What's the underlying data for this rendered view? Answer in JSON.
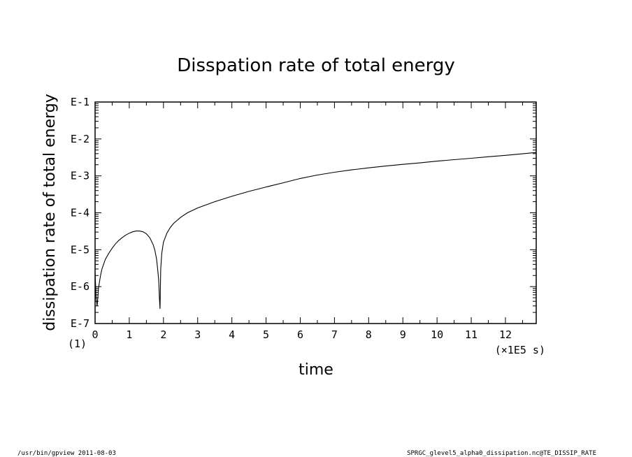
{
  "chart_data": {
    "type": "line",
    "title": "Disspation rate of total energy",
    "xlabel": "time",
    "ylabel": "dissipation rate of total energy",
    "x_unit_label": "(×1E5 s)",
    "y_unit_label": "(1)",
    "xlim": [
      0,
      12.9
    ],
    "ylim": [
      1e-07,
      0.1
    ],
    "yscale": "log",
    "grid": false,
    "x_ticks": [
      0,
      1,
      2,
      3,
      4,
      5,
      6,
      7,
      8,
      9,
      10,
      11,
      12
    ],
    "x_tick_labels": [
      "0",
      "1",
      "2",
      "3",
      "4",
      "5",
      "6",
      "7",
      "8",
      "9",
      "10",
      "11",
      "12"
    ],
    "y_ticks": [
      1e-07,
      1e-06,
      1e-05,
      0.0001,
      0.001,
      0.01,
      0.1
    ],
    "y_tick_labels": [
      "E-7",
      "E-6",
      "E-5",
      "E-4",
      "E-3",
      "E-2",
      "E-1"
    ],
    "series": [
      {
        "x": [
          0,
          0.03,
          0.06,
          0.08,
          0.1,
          0.12,
          0.16,
          0.2,
          0.3,
          0.4,
          0.5,
          0.6,
          0.7,
          0.8,
          0.9,
          1.0,
          1.1,
          1.2,
          1.3,
          1.4,
          1.5,
          1.6,
          1.7,
          1.75,
          1.8,
          1.83,
          1.86,
          1.88,
          1.9,
          1.92,
          1.95,
          2.0,
          2.1,
          2.2,
          2.3,
          2.5,
          2.7,
          3.0,
          3.5,
          4.0,
          4.5,
          5.0,
          5.5,
          6.0,
          6.5,
          7.0,
          7.5,
          8.0,
          8.5,
          9.0,
          9.5,
          10.0,
          10.5,
          11.0,
          11.5,
          12.0,
          12.5,
          12.9
        ],
        "y": [
          2.4e-06,
          5e-07,
          3e-07,
          5e-07,
          9e-07,
          1.2e-06,
          2e-06,
          3e-06,
          5.5e-06,
          8e-06,
          1.1e-05,
          1.45e-05,
          1.8e-05,
          2.15e-05,
          2.5e-05,
          2.8e-05,
          3.05e-05,
          3.2e-05,
          3.2e-05,
          3.05e-05,
          2.7e-05,
          2.1e-05,
          1.35e-05,
          9.5e-06,
          5.5e-06,
          3e-06,
          1.5e-06,
          5e-07,
          2.5e-07,
          3e-06,
          8e-06,
          1.6e-05,
          2.8e-05,
          4e-05,
          5.2e-05,
          7.5e-05,
          0.0001,
          0.000135,
          0.0002,
          0.00028,
          0.00038,
          0.0005,
          0.00065,
          0.00085,
          0.00105,
          0.00125,
          0.00145,
          0.00165,
          0.00185,
          0.00205,
          0.00225,
          0.0025,
          0.00275,
          0.003,
          0.0033,
          0.0036,
          0.00395,
          0.0043
        ]
      }
    ]
  },
  "footer": {
    "left": "/usr/bin/gpview   2011-08-03",
    "right": "SPRGC_glevel5_alpha0_dissipation.nc@TE_DISSIP_RATE"
  },
  "colors": {
    "line": "#000000",
    "frame": "#000000",
    "background": "#ffffff"
  }
}
